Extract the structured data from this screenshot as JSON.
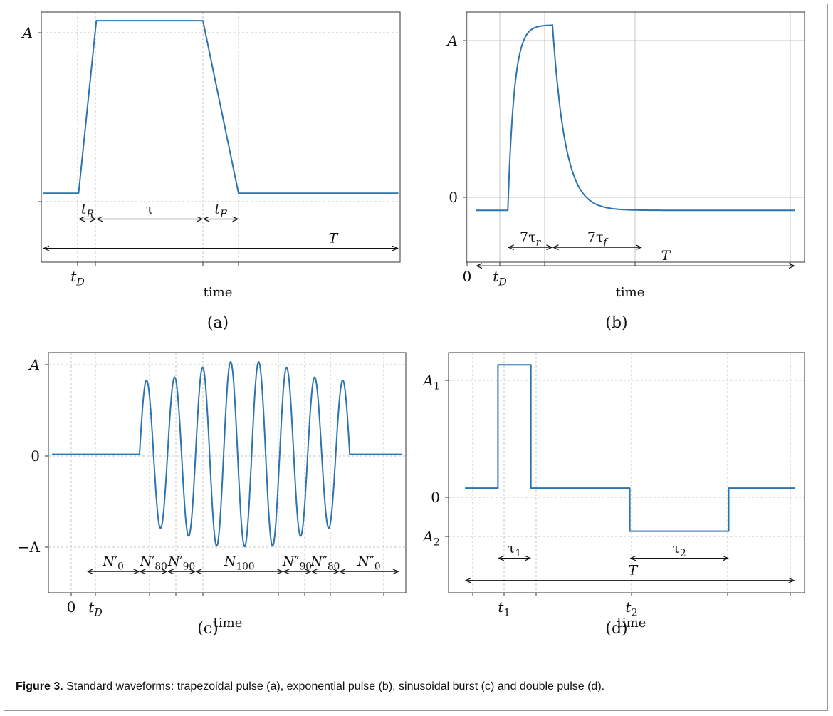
{
  "caption": {
    "label": "Figure 3.",
    "text": " Standard waveforms: trapezoidal pulse (a), exponential pulse (b), sinusoidal burst (c) and double pulse (d)."
  },
  "style": {
    "line_color": "#2b73b1",
    "grid_color": "#c4c4c4",
    "axis_color": "#333333"
  },
  "chart_data": [
    {
      "panel_label": "(a)",
      "type": "line",
      "xlabel": "time",
      "ylabel": "",
      "x_ticks": [
        "t_D"
      ],
      "y_ticks": [
        "A"
      ],
      "series": [
        {
          "shape": "trapezoidal-pulse",
          "points": [
            [
              0,
              0
            ],
            [
              1,
              0
            ],
            [
              1.5,
              1
            ],
            [
              4.5,
              1
            ],
            [
              5.5,
              1e-09
            ],
            [
              5.5,
              0
            ],
            [
              10,
              0
            ]
          ]
        }
      ],
      "xlim": [
        -0.05,
        10.05
      ],
      "ylim": [
        -0.4,
        1.05
      ],
      "annotations": [
        {
          "label": "t_R",
          "from": 1,
          "to": 1.5,
          "y": -0.15
        },
        {
          "label": "τ",
          "from": 1.5,
          "to": 4.5,
          "y": -0.15
        },
        {
          "label": "t_F",
          "from": 4.5,
          "to": 5.5,
          "y": -0.15
        },
        {
          "label": "T",
          "from": 0,
          "to": 10,
          "y": -0.32
        }
      ]
    },
    {
      "panel_label": "(b)",
      "type": "line",
      "xlabel": "time",
      "ylabel": "",
      "x_ticks": [
        "0",
        "t_D"
      ],
      "y_ticks": [
        "0",
        "A"
      ],
      "series": [
        {
          "shape": "exponential-pulse",
          "t_D": 1,
          "rise_end": 2.4,
          "fall_window_end": 5.2,
          "T": 10
        }
      ],
      "xlim": [
        -0.3,
        10.3
      ],
      "ylim": [
        -0.28,
        1.07
      ],
      "annotations": [
        {
          "label": "7τ_r",
          "from": 1,
          "to": 2.4,
          "y": -0.2
        },
        {
          "label": "7τ_f",
          "from": 2.4,
          "to": 5.2,
          "y": -0.2
        },
        {
          "label": "T",
          "from": 0,
          "to": 10,
          "y": -0.3
        }
      ]
    },
    {
      "panel_label": "(c)",
      "type": "line",
      "xlabel": "time",
      "ylabel": "",
      "x_ticks": [
        "0",
        "t_D"
      ],
      "y_ticks": [
        "-A",
        "0",
        "A"
      ],
      "series": [
        {
          "shape": "sinusoidal-burst",
          "start": 2.5,
          "end": 8.5,
          "cycles": 7.5,
          "envelope": [
            0.8,
            0.8,
            0.9,
            1,
            1,
            1,
            0.9,
            0.8,
            0.8
          ]
        }
      ],
      "xlim": [
        -0.1,
        10.1
      ],
      "ylim": [
        -1.5,
        1.1
      ],
      "annotations": [
        {
          "label": "N'_0",
          "from": 1,
          "to": 2.5,
          "y": -1.27
        },
        {
          "label": "N'_80",
          "from": 2.5,
          "to": 3.3,
          "y": -1.27
        },
        {
          "label": "N'_90",
          "from": 3.3,
          "to": 4.1,
          "y": -1.27
        },
        {
          "label": "N_100",
          "from": 4.1,
          "to": 6.6,
          "y": -1.27
        },
        {
          "label": "N''_90",
          "from": 6.6,
          "to": 7.4,
          "y": -1.27
        },
        {
          "label": "N''_80",
          "from": 7.4,
          "to": 8.2,
          "y": -1.27
        },
        {
          "label": "N''_0",
          "from": 8.2,
          "to": 9.9,
          "y": -1.27
        }
      ]
    },
    {
      "panel_label": "(d)",
      "type": "line",
      "xlabel": "time",
      "ylabel": "",
      "x_ticks": [
        "t_1",
        "t_2"
      ],
      "y_ticks": [
        "A_2",
        "0",
        "A_1"
      ],
      "series": [
        {
          "shape": "double-pulse",
          "points": [
            [
              0,
              0
            ],
            [
              1,
              0
            ],
            [
              1,
              1
            ],
            [
              2,
              1
            ],
            [
              2,
              0
            ],
            [
              5,
              0
            ],
            [
              5,
              -0.35
            ],
            [
              8,
              -0.35
            ],
            [
              8,
              0
            ],
            [
              10,
              0
            ]
          ]
        }
      ],
      "xlim": [
        -0.5,
        10.3
      ],
      "ylim": [
        -0.85,
        1.1
      ],
      "annotations": [
        {
          "label": "τ_1",
          "from": 1,
          "to": 2,
          "y": -0.57
        },
        {
          "label": "τ_2",
          "from": 5,
          "to": 8,
          "y": -0.57
        },
        {
          "label": "T",
          "from": 0,
          "to": 10,
          "y": -0.75
        }
      ]
    }
  ]
}
